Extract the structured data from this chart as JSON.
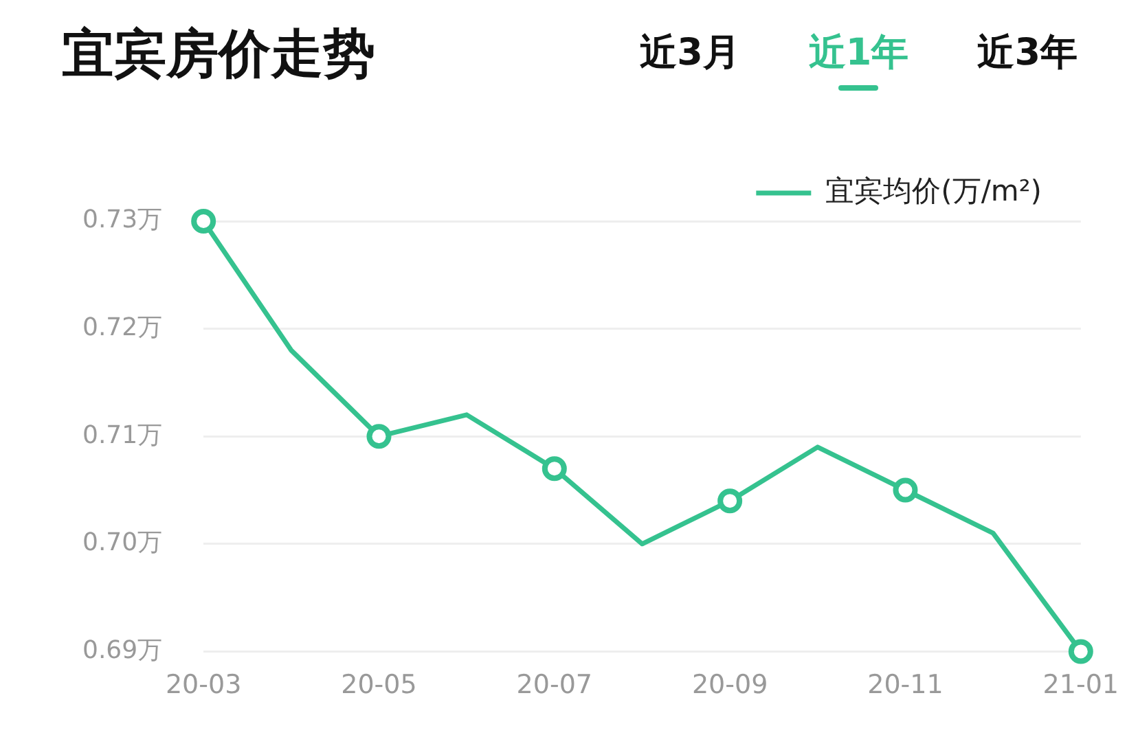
{
  "chart_data": {
    "type": "line",
    "title": "宜宾房价走势",
    "annotations": [
      "近3月",
      "近1年",
      "近3年"
    ],
    "categories": [
      "20-03",
      null,
      "20-05",
      null,
      "20-07",
      null,
      "20-09",
      null,
      "20-11",
      null,
      "21-01"
    ],
    "series": [
      {
        "name": "宜宾均价(万/m²)",
        "color": "#35c28f",
        "values": [
          0.73,
          0.718,
          0.71,
          0.712,
          0.707,
          0.7,
          0.704,
          0.709,
          0.705,
          0.701,
          0.69
        ]
      }
    ],
    "ylim": [
      0.69,
      0.73
    ],
    "yticks": [
      {
        "value": 0.69,
        "label": "0.69万"
      },
      {
        "value": 0.7,
        "label": "0.70万"
      },
      {
        "value": 0.71,
        "label": "0.71万"
      },
      {
        "value": 0.72,
        "label": "0.72万"
      },
      {
        "value": 0.73,
        "label": "0.73万"
      }
    ],
    "grid": "y",
    "legend": "top right",
    "marker": "circle",
    "line_style": "solid"
  }
}
